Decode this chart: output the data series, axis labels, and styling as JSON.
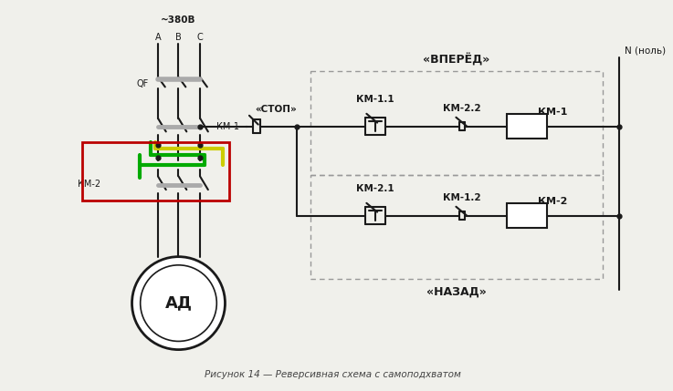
{
  "bg_color": "#f0f0eb",
  "line_color": "#1a1a1a",
  "lw": 1.5,
  "title": "Рисунок 14 — Реверсивная схема с самоподхватом",
  "label_380": "~380В",
  "label_A": "A",
  "label_B": "B",
  "label_C": "C",
  "label_QF": "QF",
  "label_KM1_power": "КМ-1",
  "label_KM2_power": "КМ-2",
  "label_AD": "АД",
  "label_stop": "«СТОП»",
  "label_forward": "«ВПЕРЁД»",
  "label_backward": "«НАЗАД»",
  "label_KM11": "КМ-1.1",
  "label_KM22": "КМ-2.2",
  "label_KM1_coil": "КМ-1",
  "label_KM21": "КМ-2.1",
  "label_KM12": "КМ-1.2",
  "label_KM2_coil": "КМ-2",
  "label_N": "N (ноль)",
  "red_color": "#bb0000",
  "green_color": "#00aa00",
  "yellow_color": "#cccc00",
  "dot_color": "#1a1a1a",
  "dashed_color": "#999999"
}
